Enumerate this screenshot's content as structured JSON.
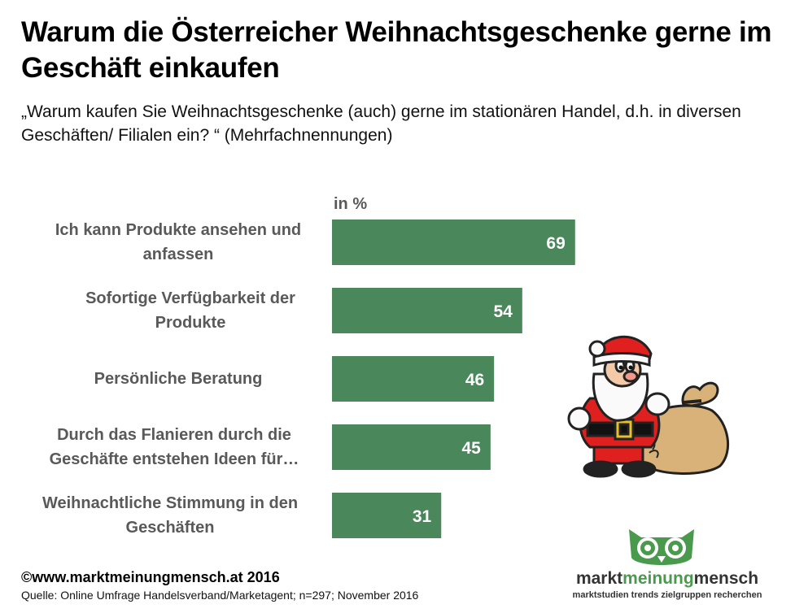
{
  "title": "Warum die Österreicher Weihnachtsgeschenke gerne im Geschäft einkaufen",
  "subtitle": "„Warum kaufen Sie Weihnachtsgeschenke (auch) gerne im stationären Handel, d.h. in diversen Geschäften/ Filialen ein? “ (Mehrfachnennungen)",
  "chart_data": {
    "type": "bar",
    "orientation": "horizontal",
    "unit_label": "in %",
    "categories": [
      "Ich kann Produkte ansehen und anfassen",
      "Sofortige Verfügbarkeit der Produkte",
      "Persönliche Beratung",
      "Durch das Flanieren durch die Geschäfte entstehen Ideen für…",
      "Weihnachtliche Stimmung in den Geschäften"
    ],
    "values": [
      69,
      54,
      46,
      45,
      31
    ],
    "bar_color": "#4a875a",
    "value_label_color": "#ffffff",
    "category_label_color": "#595959",
    "xlim": [
      0,
      100
    ],
    "grid": false,
    "legend": "none"
  },
  "footer": {
    "copyright": "©www.marktmeinungmensch.at 2016",
    "source": "Quelle: Online Umfrage Handelsverband/Marketagent; n=297; November 2016"
  },
  "logo": {
    "part1": "markt",
    "part2": "meinung",
    "part3": "mensch",
    "tagline": "marktstudien trends zielgruppen recherchen",
    "accent": "#4a9a4e"
  },
  "illustration": {
    "name": "santa-claus-with-sack"
  }
}
